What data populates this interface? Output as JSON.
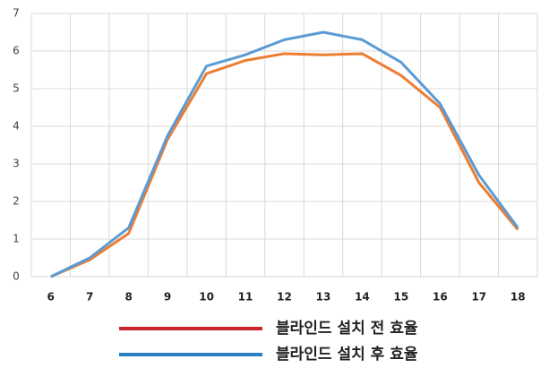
{
  "chart_data": {
    "type": "line",
    "categories": [
      "6",
      "7",
      "8",
      "9",
      "10",
      "11",
      "12",
      "13",
      "14",
      "15",
      "16",
      "17",
      "18"
    ],
    "series": [
      {
        "name": "블라인드 설치 전 효율",
        "color": "#ed7d31",
        "legend_color": "#c9262c",
        "values": [
          0,
          0.45,
          1.15,
          3.65,
          5.4,
          5.75,
          5.93,
          5.9,
          5.93,
          5.35,
          4.5,
          2.5,
          1.25
        ]
      },
      {
        "name": "블라인드 설치 후 효율",
        "color": "#5b9bd5",
        "legend_color": "#2a7fc0",
        "values": [
          0,
          0.5,
          1.3,
          3.75,
          5.6,
          5.9,
          6.3,
          6.5,
          6.3,
          5.7,
          4.6,
          2.7,
          1.3
        ]
      }
    ],
    "ylim": [
      0,
      7
    ],
    "yticks": [
      0,
      1,
      2,
      3,
      4,
      5,
      6,
      7
    ],
    "grid": true
  }
}
